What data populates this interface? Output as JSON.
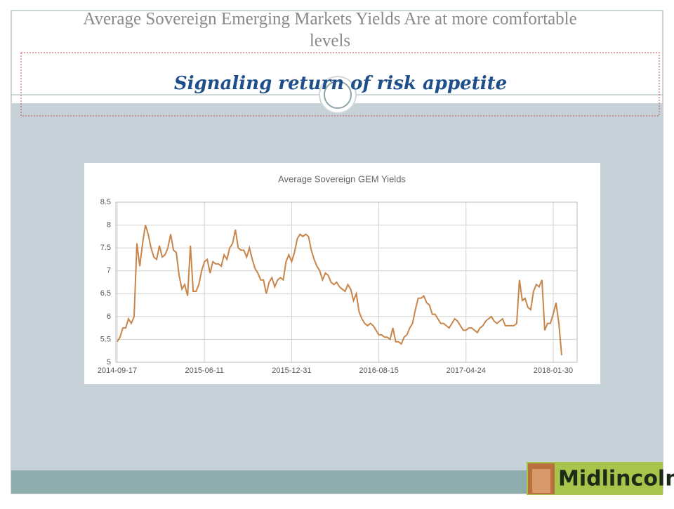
{
  "header": {
    "title_lines": [
      "Average Sovereign Emerging Markets Yields Are at more comfortable",
      "levels"
    ],
    "subtitle": "Signaling return of risk appetite"
  },
  "logo": {
    "text": "Midlincoln"
  },
  "chart_data": {
    "type": "line",
    "title": "Average Sovereign GEM Yields",
    "categories": [
      "2014-09-17",
      null,
      null,
      null,
      null,
      null,
      null,
      null,
      null,
      null,
      null,
      null,
      null,
      null,
      null,
      null,
      null,
      null,
      null,
      null,
      null,
      null,
      null,
      null,
      null,
      null,
      null,
      null,
      null,
      null,
      null,
      "2015-06-11",
      null,
      null,
      null,
      null,
      null,
      null,
      null,
      null,
      null,
      null,
      null,
      null,
      null,
      null,
      null,
      null,
      null,
      null,
      null,
      null,
      null,
      null,
      null,
      null,
      null,
      null,
      null,
      null,
      null,
      null,
      "2015-12-31",
      null,
      null,
      null,
      null,
      null,
      null,
      null,
      null,
      null,
      null,
      null,
      null,
      null,
      null,
      null,
      null,
      null,
      null,
      null,
      null,
      null,
      null,
      null,
      null,
      null,
      null,
      null,
      null,
      null,
      null,
      "2016-08-15",
      null,
      null,
      null,
      null,
      null,
      null,
      null,
      null,
      null,
      null,
      null,
      null,
      null,
      null,
      null,
      null,
      null,
      null,
      null,
      null,
      null,
      null,
      null,
      null,
      null,
      null,
      null,
      null,
      null,
      null,
      "2017-04-24",
      null,
      null,
      null,
      null,
      null,
      null,
      null,
      null,
      null,
      null,
      null,
      null,
      null,
      null,
      null,
      null,
      null,
      null,
      null,
      null,
      null,
      null,
      null,
      null,
      null,
      null,
      null,
      null,
      null,
      null,
      "2018-01-30",
      null,
      null,
      null
    ],
    "series": [
      {
        "name": "Average Sovereign GEM Yields",
        "color": "#c8854a",
        "values": [
          5.45,
          5.55,
          5.75,
          5.75,
          5.95,
          5.85,
          6.0,
          7.6,
          7.1,
          7.6,
          8.0,
          7.8,
          7.5,
          7.3,
          7.25,
          7.55,
          7.3,
          7.35,
          7.5,
          7.8,
          7.45,
          7.4,
          6.9,
          6.6,
          6.7,
          6.45,
          7.55,
          6.55,
          6.55,
          6.7,
          7.0,
          7.2,
          7.25,
          6.95,
          7.2,
          7.15,
          7.15,
          7.1,
          7.35,
          7.25,
          7.5,
          7.6,
          7.9,
          7.5,
          7.45,
          7.45,
          7.3,
          7.5,
          7.25,
          7.05,
          6.95,
          6.8,
          6.8,
          6.5,
          6.75,
          6.85,
          6.65,
          6.8,
          6.85,
          6.8,
          7.2,
          7.35,
          7.2,
          7.4,
          7.7,
          7.8,
          7.75,
          7.8,
          7.75,
          7.45,
          7.25,
          7.1,
          7.0,
          6.8,
          6.95,
          6.9,
          6.75,
          6.7,
          6.75,
          6.65,
          6.6,
          6.55,
          6.7,
          6.6,
          6.35,
          6.5,
          6.1,
          5.95,
          5.85,
          5.8,
          5.85,
          5.8,
          5.7,
          5.6,
          5.6,
          5.55,
          5.55,
          5.5,
          5.75,
          5.45,
          5.45,
          5.4,
          5.55,
          5.6,
          5.75,
          5.85,
          6.15,
          6.4,
          6.4,
          6.45,
          6.3,
          6.25,
          6.05,
          6.05,
          5.95,
          5.85,
          5.85,
          5.8,
          5.75,
          5.85,
          5.95,
          5.9,
          5.8,
          5.7,
          5.7,
          5.75,
          5.75,
          5.7,
          5.65,
          5.75,
          5.8,
          5.9,
          5.95,
          6.0,
          5.9,
          5.85,
          5.9,
          5.95,
          5.8,
          5.8,
          5.8,
          5.8,
          5.85,
          6.8,
          6.35,
          6.4,
          6.2,
          6.15,
          6.55,
          6.7,
          6.65,
          6.8,
          5.7,
          5.85,
          5.85,
          6.05,
          6.3,
          5.85,
          5.15
        ]
      }
    ],
    "ylim": [
      5,
      8.5
    ],
    "yticks": [
      5,
      5.5,
      6,
      6.5,
      7,
      7.5,
      8,
      8.5
    ],
    "grid": true
  }
}
